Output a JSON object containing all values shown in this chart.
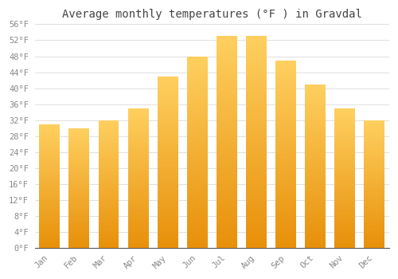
{
  "title": "Average monthly temperatures (°F ) in Gravdal",
  "months": [
    "Jan",
    "Feb",
    "Mar",
    "Apr",
    "May",
    "Jun",
    "Jul",
    "Aug",
    "Sep",
    "Oct",
    "Nov",
    "Dec"
  ],
  "values": [
    31,
    30,
    32,
    35,
    43,
    48,
    53,
    53,
    47,
    41,
    35,
    32
  ],
  "bar_color": "#F5A623",
  "ylim": [
    0,
    56
  ],
  "yticks": [
    0,
    4,
    8,
    12,
    16,
    20,
    24,
    28,
    32,
    36,
    40,
    44,
    48,
    52,
    56
  ],
  "ytick_labels": [
    "0°F",
    "4°F",
    "8°F",
    "12°F",
    "16°F",
    "20°F",
    "24°F",
    "28°F",
    "32°F",
    "36°F",
    "40°F",
    "44°F",
    "48°F",
    "52°F",
    "56°F"
  ],
  "grid_color": "#e0e0e0",
  "bg_color": "#ffffff",
  "title_fontsize": 10,
  "tick_fontsize": 7.5,
  "tick_color": "#888888",
  "title_color": "#444444",
  "bar_bottom_color": "#E8900A",
  "bar_top_color": "#FFD070",
  "spine_color": "#555555",
  "bar_width": 0.7
}
